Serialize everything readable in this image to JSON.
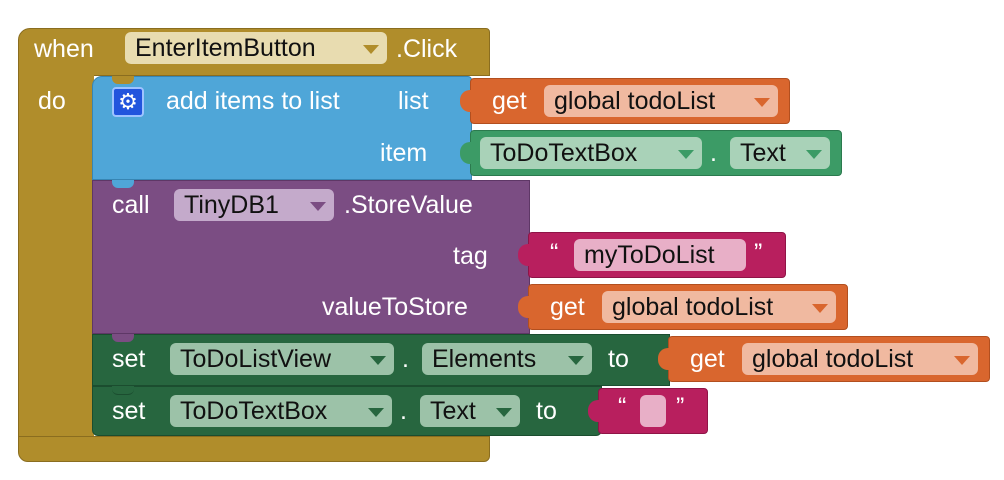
{
  "event": {
    "when_label": "when",
    "component": "EnterItemButton",
    "event_name": ".Click",
    "do_label": "do"
  },
  "add_items": {
    "title": "add items to list",
    "list_label": "list",
    "item_label": "item",
    "list_get": {
      "get_label": "get",
      "var": "global todoList"
    },
    "item_value": {
      "component": "ToDoTextBox",
      "dot": ".",
      "property": "Text"
    }
  },
  "store_value": {
    "call_label": "call",
    "component": "TinyDB1",
    "method": ".StoreValue",
    "tag_label": "tag",
    "value_label": "valueToStore",
    "tag_text": {
      "open_quote": "“",
      "value": "myToDoList",
      "close_quote": "”"
    },
    "value_get": {
      "get_label": "get",
      "var": "global todoList"
    }
  },
  "set_elements": {
    "set_label": "set",
    "component": "ToDoListView",
    "dot": ".",
    "property": "Elements",
    "to_label": "to",
    "value_get": {
      "get_label": "get",
      "var": "global todoList"
    }
  },
  "set_text": {
    "set_label": "set",
    "component": "ToDoTextBox",
    "dot": ".",
    "property": "Text",
    "to_label": "to",
    "text_value": {
      "open_quote": "“",
      "value": "",
      "close_quote": "”"
    }
  },
  "colors": {
    "event": "#B08D2B",
    "event_field": "#E8DCB0",
    "list_block": "#4FA6D8",
    "get_block": "#D9662E",
    "get_field": "#F0B9A0",
    "component_block": "#3C9B66",
    "component_field": "#A9D2B8",
    "call_block": "#7B4D83",
    "call_field": "#C4AACB",
    "text_block": "#B81F5E",
    "text_field": "#E8AFC7",
    "set_block": "#27663F",
    "set_field": "#9CC2A8",
    "mutator": "#2255DD"
  },
  "icons": {
    "mutator": "gear-icon",
    "dropdown": "chevron-down-icon"
  }
}
